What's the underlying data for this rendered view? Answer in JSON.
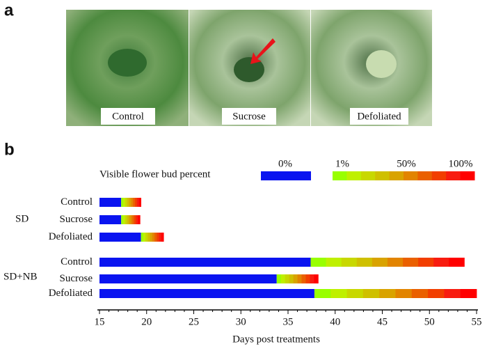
{
  "panels": {
    "a": "a",
    "b": "b"
  },
  "photos": [
    "Control",
    "Sucrose",
    "Defoliated"
  ],
  "chart_data": {
    "type": "timeline-bar",
    "xlabel": "Days post treatments",
    "xlim": [
      15,
      55
    ],
    "xticks": [
      15,
      20,
      25,
      30,
      35,
      40,
      45,
      50,
      55
    ],
    "minor_ticks": true,
    "zero_color": "#0a14f0",
    "gradient_colors": [
      "#99ff00",
      "#bff000",
      "#c8d800",
      "#cfc000",
      "#d9a300",
      "#e28400",
      "#ea6000",
      "#f23e00",
      "#f81c10",
      "#ff0000"
    ],
    "legend": {
      "title": "Visible flower bud percent",
      "zero_label": "0%",
      "scale_labels": [
        "1%",
        "50%",
        "100%"
      ]
    },
    "groups": [
      {
        "name": "SD",
        "bars": [
          {
            "name": "Control",
            "start": 15,
            "bud_start": 17.3,
            "end": 19.4
          },
          {
            "name": "Sucrose",
            "start": 15,
            "bud_start": 17.3,
            "end": 19.3
          },
          {
            "name": "Defoliated",
            "start": 15,
            "bud_start": 19.4,
            "end": 21.8
          }
        ]
      },
      {
        "name": "SD+NB",
        "bars": [
          {
            "name": "Control",
            "start": 15,
            "bud_start": 37.4,
            "end": 53.7
          },
          {
            "name": "Sucrose",
            "start": 15,
            "bud_start": 33.8,
            "end": 38.2
          },
          {
            "name": "Defoliated",
            "start": 15,
            "bud_start": 37.8,
            "end": 55
          }
        ]
      }
    ]
  }
}
